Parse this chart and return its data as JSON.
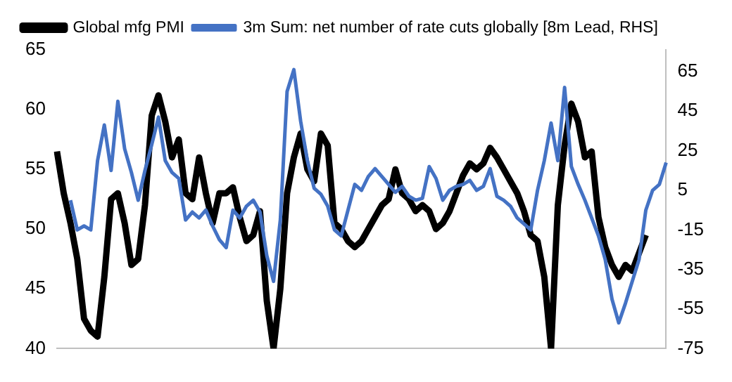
{
  "chart_data": {
    "type": "line",
    "categories": [
      null,
      null,
      null,
      null,
      null,
      null,
      null,
      null,
      null,
      null,
      null,
      null,
      null,
      null,
      null,
      null,
      null,
      null,
      null,
      null,
      null,
      null,
      null,
      null,
      null,
      null,
      null,
      null,
      null,
      null,
      null,
      null,
      null,
      null,
      null,
      null,
      null,
      null,
      null,
      null,
      null,
      null,
      null,
      null,
      null,
      null,
      null,
      null,
      null,
      null,
      null,
      null,
      null,
      null,
      null,
      null,
      null,
      null,
      null,
      null,
      null,
      null,
      null,
      null,
      null,
      null,
      null,
      null,
      null,
      null,
      null,
      null,
      null,
      null,
      null,
      null,
      null,
      null,
      null,
      null,
      null,
      null,
      null,
      null,
      null,
      null,
      null,
      null,
      null,
      null,
      null
    ],
    "series": [
      {
        "name": "Global mfg PMI",
        "color": "#000000",
        "values": [
          56.5,
          53,
          50.5,
          47.5,
          42.5,
          41.5,
          41,
          46,
          52.5,
          53,
          50.5,
          47,
          47.5,
          52,
          59.5,
          61.2,
          59,
          56,
          57.5,
          53,
          52.5,
          56,
          53,
          50.5,
          53,
          53,
          53.5,
          51,
          49,
          49.5,
          51.5,
          44,
          40,
          45,
          53,
          56,
          58,
          55,
          54,
          58,
          57,
          50.5,
          50,
          49,
          48.5,
          49,
          50,
          51,
          52,
          52.5,
          55,
          53,
          52.5,
          51.5,
          52,
          51.5,
          50,
          50.5,
          51.5,
          53,
          54.5,
          55.5,
          55,
          55.5,
          56.8,
          56,
          55,
          54,
          53,
          51.5,
          49.5,
          49,
          46,
          40,
          52,
          57,
          60.5,
          59,
          56,
          56.5,
          51,
          48.5,
          47,
          46,
          47,
          46.5,
          48,
          49.5,
          null,
          null,
          null
        ]
      },
      {
        "name": "3m Sum: net number of rate cuts globally [8m Lead, RHS]",
        "color": "#4472c4",
        "axis": "y2",
        "values": [
          null,
          null,
          0,
          -15,
          -13,
          -15,
          20,
          38,
          15,
          50,
          26,
          14,
          0,
          15,
          28,
          42,
          20,
          14,
          11,
          -10,
          -6,
          -9,
          -5,
          -13,
          -20,
          -24,
          -5,
          -9,
          -3,
          0,
          -6,
          -28,
          -41,
          -10,
          55,
          66,
          40,
          20,
          6,
          3,
          -3,
          -15,
          -18,
          -5,
          8,
          5,
          12,
          16,
          12,
          8,
          4,
          7,
          2,
          0,
          1,
          17,
          11,
          0,
          5,
          7,
          8,
          10,
          5,
          7,
          16,
          2,
          0,
          -3,
          -9,
          -12,
          -15,
          5,
          20,
          39,
          20,
          57,
          17,
          8,
          0,
          -9,
          -18,
          -30,
          -50,
          -62,
          -52,
          -41,
          -30,
          -5,
          5,
          8,
          19
        ]
      }
    ],
    "ylim": [
      40,
      65
    ],
    "yticks": [
      40,
      45,
      50,
      55,
      60,
      65
    ],
    "y2lim": [
      -75,
      76
    ],
    "y2ticks": [
      -75,
      -55,
      -35,
      -15,
      5,
      25,
      45,
      65
    ],
    "grid": false,
    "legend": "top",
    "marker": "none",
    "line_style": "solid",
    "tick_labels": "y"
  }
}
